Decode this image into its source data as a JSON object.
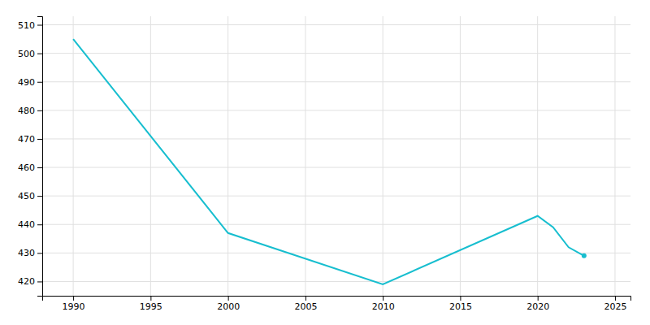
{
  "chart_data": {
    "type": "line",
    "x": [
      1990,
      2000,
      2010,
      2020,
      2021,
      2022,
      2023
    ],
    "values": [
      505,
      437,
      419,
      443,
      439,
      432,
      429
    ],
    "color": "#17becf",
    "xlim": [
      1988,
      2026
    ],
    "ylim": [
      415,
      513
    ],
    "xticks": [
      1990,
      1995,
      2000,
      2005,
      2010,
      2015,
      2020,
      2025
    ],
    "yticks": [
      420,
      430,
      440,
      450,
      460,
      470,
      480,
      490,
      500,
      510
    ],
    "grid": true
  }
}
